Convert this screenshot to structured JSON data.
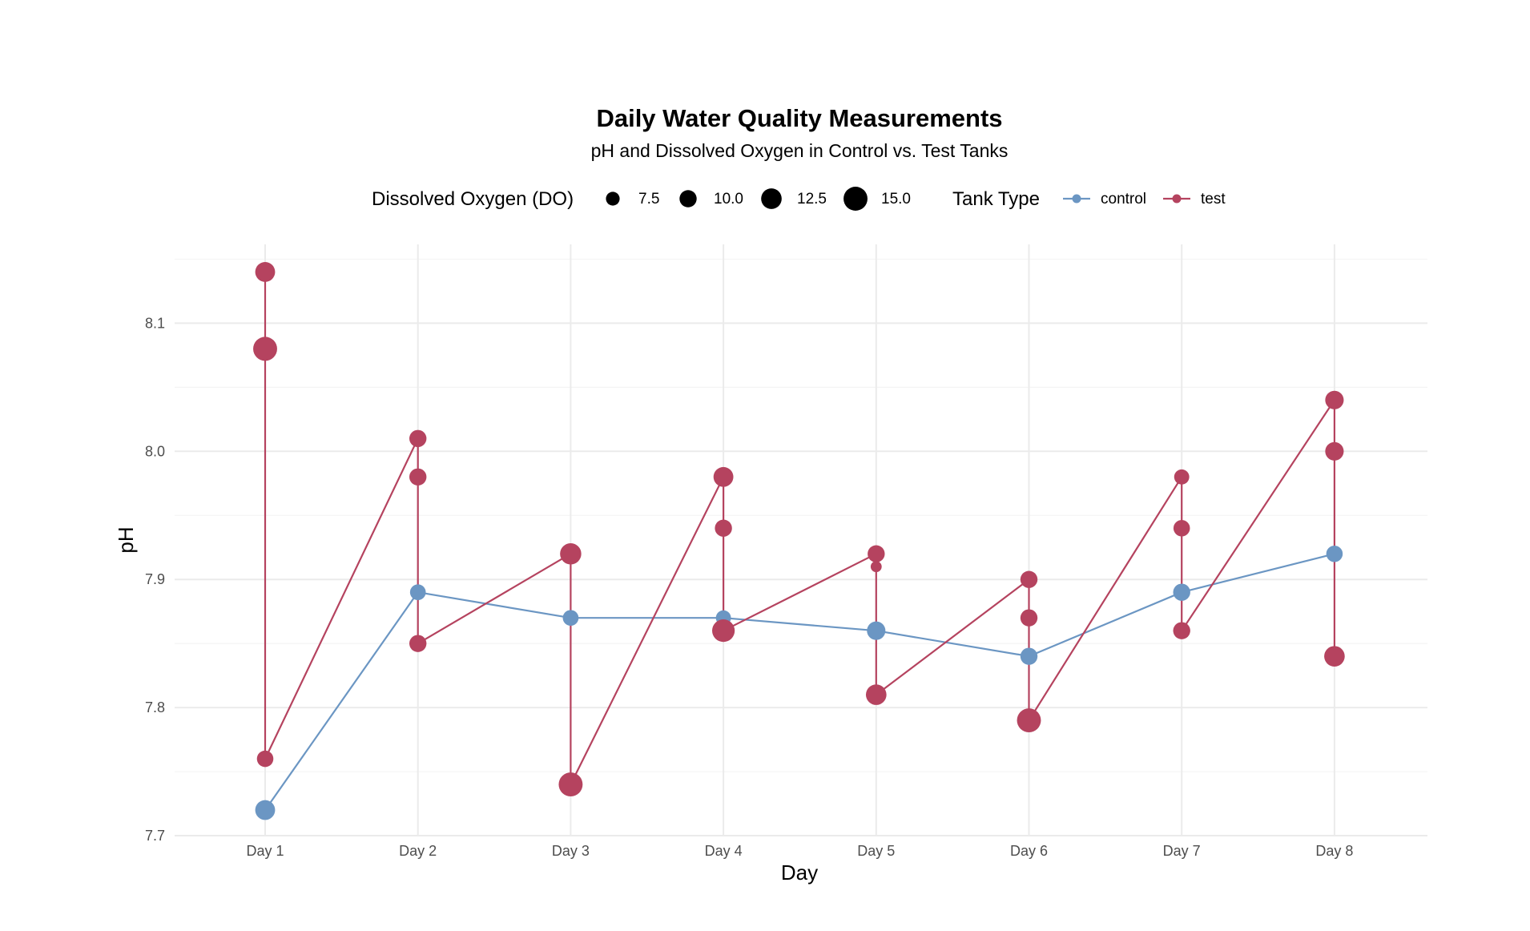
{
  "chart_data": {
    "type": "line",
    "title": "Daily Water Quality Measurements",
    "subtitle": "pH and Dissolved Oxygen in Control vs. Test Tanks",
    "xlabel": "Day",
    "ylabel": "pH",
    "categories": [
      "Day 1",
      "Day 2",
      "Day 3",
      "Day 4",
      "Day 5",
      "Day 6",
      "Day 7",
      "Day 8"
    ],
    "ylim": [
      7.7,
      8.15
    ],
    "yticks": [
      "7.7",
      "7.8",
      "7.9",
      "8.0",
      "8.1"
    ],
    "grid": true,
    "legend_position": "top",
    "size_legend": {
      "title": "Dissolved Oxygen (DO)",
      "values": [
        7.5,
        10.0,
        12.5,
        15.0
      ],
      "labels": [
        "7.5",
        "10.0",
        "12.5",
        "15.0"
      ]
    },
    "color_legend": {
      "title": "Tank Type",
      "entries": [
        "control",
        "test"
      ]
    },
    "series": [
      {
        "name": "control",
        "color": "#6b96c3",
        "points": [
          {
            "x": "Day 1",
            "ph": 7.72,
            "do": 12.0
          },
          {
            "x": "Day 2",
            "ph": 7.89,
            "do": 9.0
          },
          {
            "x": "Day 3",
            "ph": 7.87,
            "do": 9.0
          },
          {
            "x": "Day 4",
            "ph": 7.87,
            "do": 8.5
          },
          {
            "x": "Day 5",
            "ph": 7.86,
            "do": 11.0
          },
          {
            "x": "Day 6",
            "ph": 7.84,
            "do": 10.0
          },
          {
            "x": "Day 7",
            "ph": 7.89,
            "do": 10.0
          },
          {
            "x": "Day 8",
            "ph": 7.92,
            "do": 9.5
          }
        ]
      },
      {
        "name": "test",
        "color": "#b5435f",
        "points": [
          {
            "x": "Day 1",
            "ph": 8.14,
            "do": 12.0
          },
          {
            "x": "Day 1",
            "ph": 8.08,
            "do": 15.0
          },
          {
            "x": "Day 1",
            "ph": 7.76,
            "do": 9.5
          },
          {
            "x": "Day 2",
            "ph": 8.01,
            "do": 10.0
          },
          {
            "x": "Day 2",
            "ph": 7.98,
            "do": 10.0
          },
          {
            "x": "Day 2",
            "ph": 7.85,
            "do": 10.0
          },
          {
            "x": "Day 3",
            "ph": 7.92,
            "do": 13.0
          },
          {
            "x": "Day 3",
            "ph": 7.74,
            "do": 15.0
          },
          {
            "x": "Day 4",
            "ph": 7.98,
            "do": 12.0
          },
          {
            "x": "Day 4",
            "ph": 7.94,
            "do": 10.0
          },
          {
            "x": "Day 4",
            "ph": 7.86,
            "do": 14.0
          },
          {
            "x": "Day 5",
            "ph": 7.92,
            "do": 10.0
          },
          {
            "x": "Day 5",
            "ph": 7.91,
            "do": 5.5
          },
          {
            "x": "Day 5",
            "ph": 7.81,
            "do": 12.5
          },
          {
            "x": "Day 6",
            "ph": 7.9,
            "do": 10.0
          },
          {
            "x": "Day 6",
            "ph": 7.87,
            "do": 10.0
          },
          {
            "x": "Day 6",
            "ph": 7.79,
            "do": 15.0
          },
          {
            "x": "Day 7",
            "ph": 7.98,
            "do": 8.5
          },
          {
            "x": "Day 7",
            "ph": 7.94,
            "do": 9.5
          },
          {
            "x": "Day 7",
            "ph": 7.86,
            "do": 10.0
          },
          {
            "x": "Day 8",
            "ph": 8.04,
            "do": 11.0
          },
          {
            "x": "Day 8",
            "ph": 8.0,
            "do": 11.0
          },
          {
            "x": "Day 8",
            "ph": 7.84,
            "do": 12.5
          }
        ]
      }
    ]
  }
}
